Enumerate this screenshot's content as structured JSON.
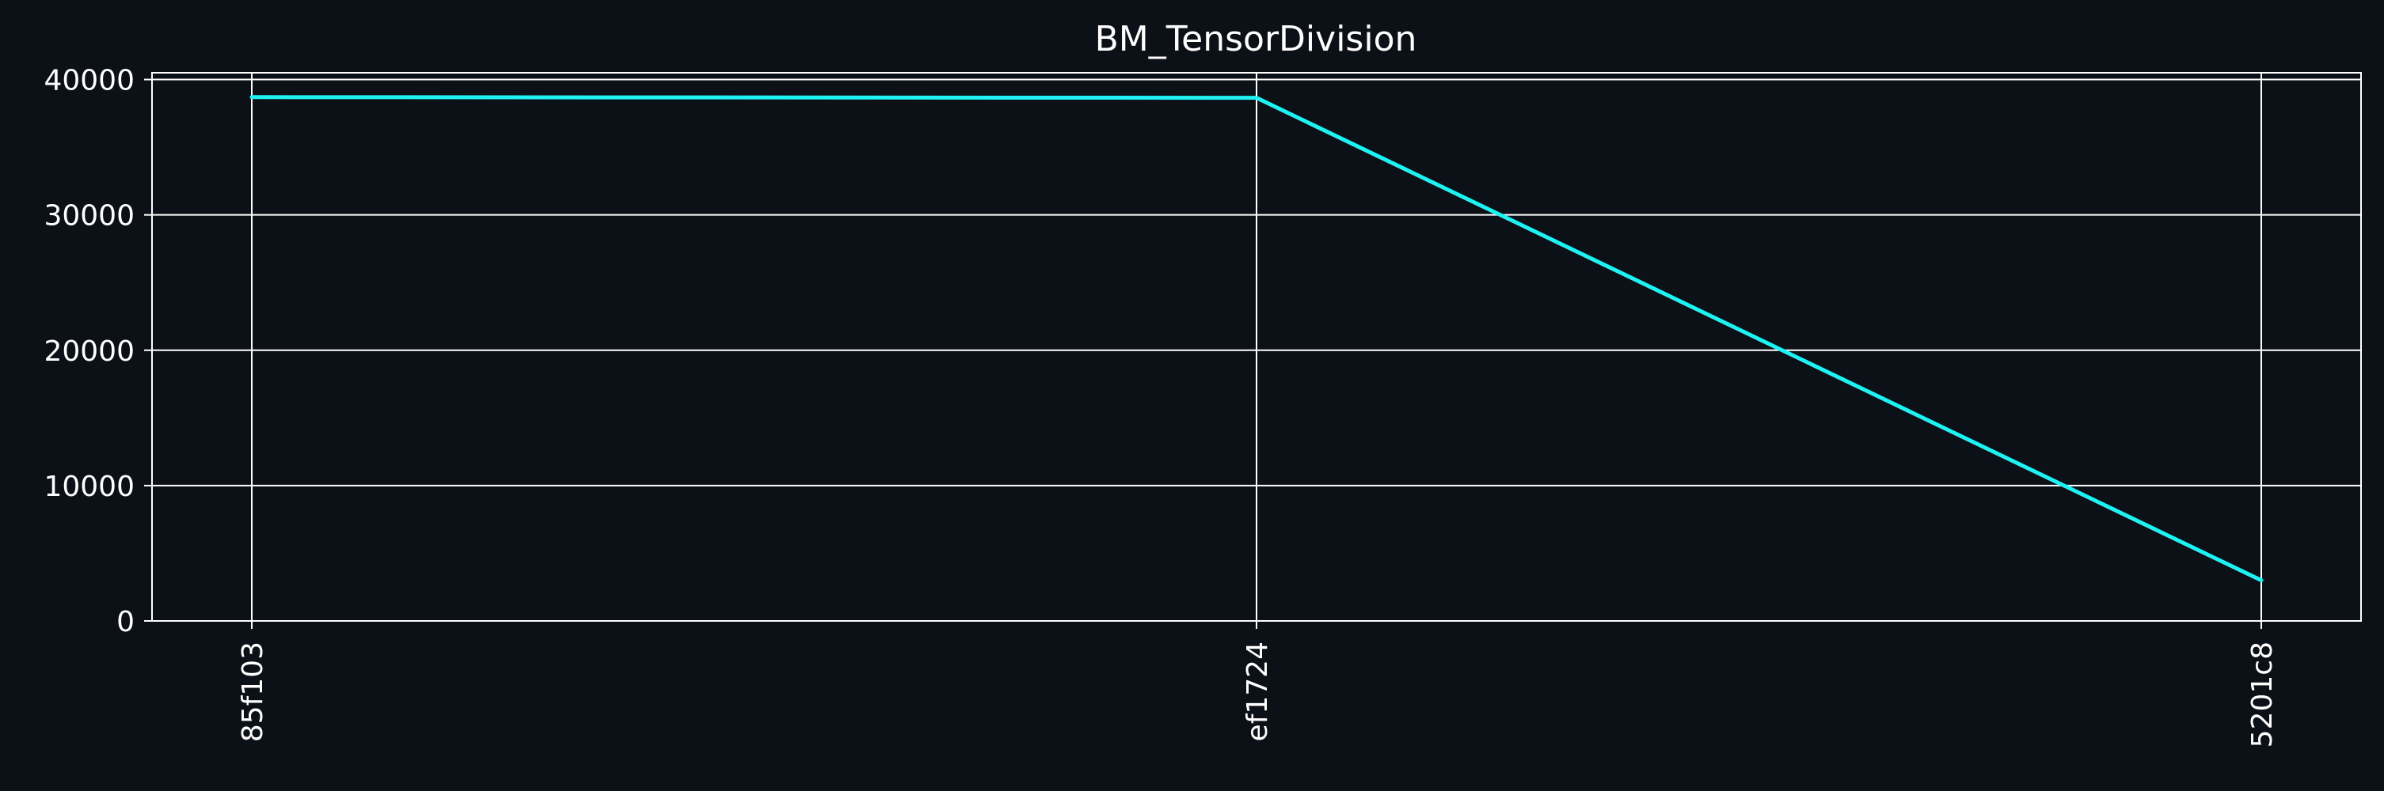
{
  "chart_data": {
    "type": "line",
    "title": "BM_TensorDivision",
    "xlabel": "",
    "ylabel": "",
    "categories": [
      "85f103",
      "ef1724",
      "5201c8"
    ],
    "series": [
      {
        "values": [
          38700,
          38650,
          3000
        ]
      }
    ],
    "ylim": [
      0,
      40500
    ],
    "yticks": [
      0,
      10000,
      20000,
      30000,
      40000
    ],
    "ytick_labels": [
      "0",
      "10000",
      "20000",
      "30000",
      "40000"
    ],
    "grid": true,
    "colors": {
      "background": "#0c1017",
      "text": "#ffffff",
      "grid": "#ffffff",
      "line": "#1ff2f2"
    }
  }
}
